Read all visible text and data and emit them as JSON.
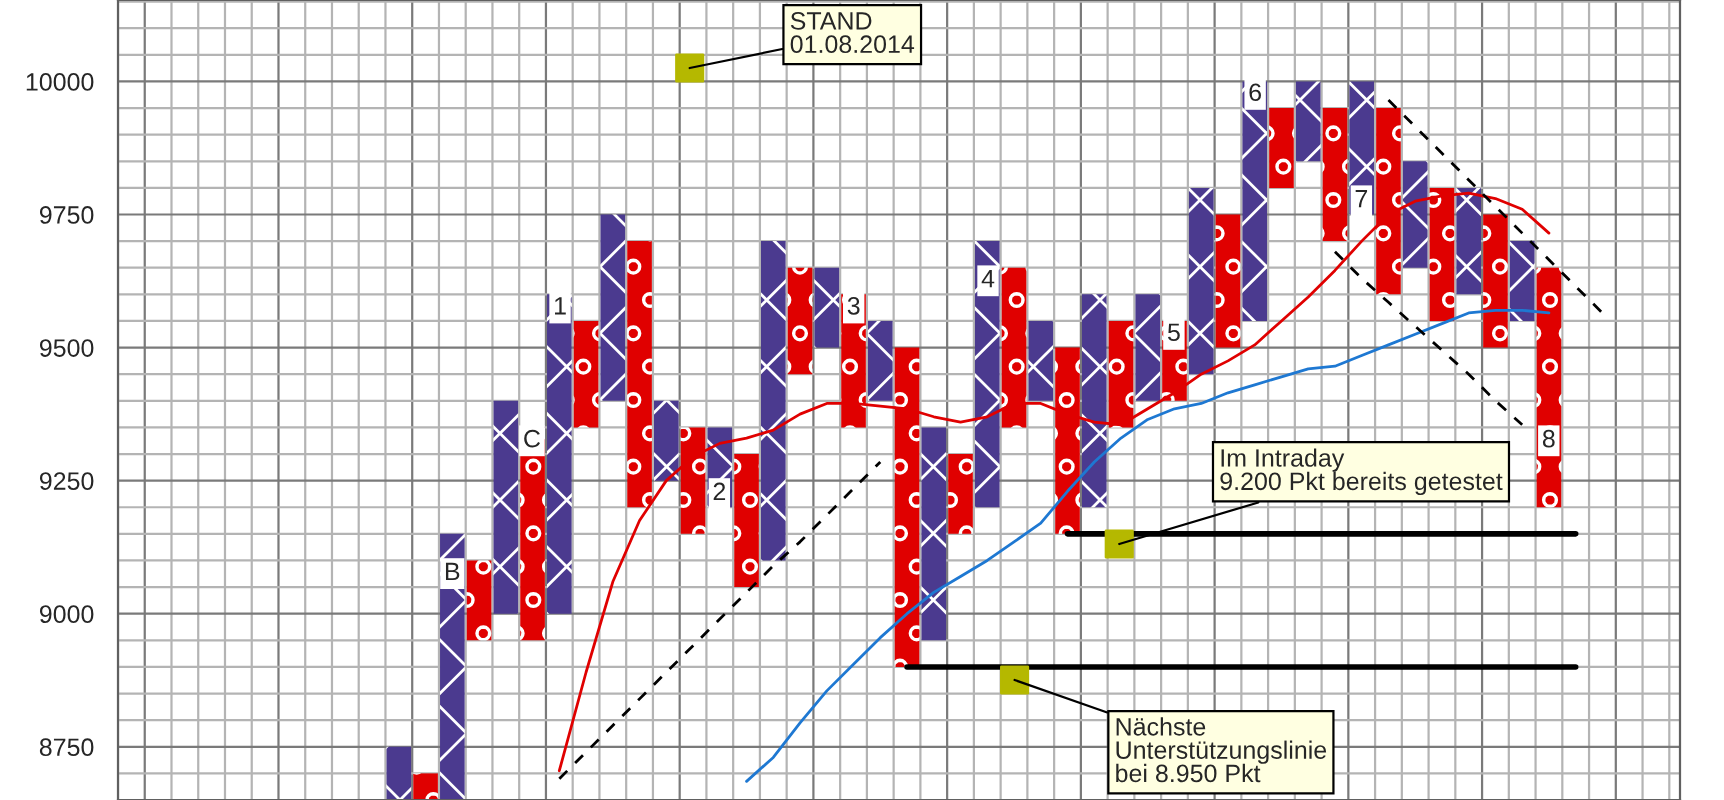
{
  "chart_data": {
    "type": "bar",
    "categories": [
      null,
      null,
      null,
      null,
      null,
      null,
      null,
      null,
      null,
      null,
      null,
      null,
      null,
      null,
      null,
      null,
      null,
      null,
      null,
      null,
      null,
      null,
      null,
      null,
      null,
      null,
      null,
      null,
      null,
      null,
      null,
      null,
      null,
      null,
      null,
      null,
      null,
      null,
      null,
      null,
      null,
      null,
      null,
      null,
      null,
      null,
      null,
      null,
      null,
      null,
      null,
      null,
      null,
      null,
      null,
      null,
      null,
      null
    ],
    "ylim": [
      8650,
      10153
    ],
    "yticks": [
      {
        "value": 8700,
        "label": null
      },
      8750,
      {
        "value": 8800,
        "label": null
      },
      {
        "value": 8850,
        "label": null
      },
      {
        "value": 8900,
        "label": null
      },
      {
        "value": 8950,
        "label": null
      },
      9000,
      {
        "value": 9050,
        "label": null
      },
      {
        "value": 9100,
        "label": null
      },
      {
        "value": 9150,
        "label": null
      },
      {
        "value": 9200,
        "label": null
      },
      9250,
      {
        "value": 9300,
        "label": null
      },
      {
        "value": 9350,
        "label": null
      },
      {
        "value": 9400,
        "label": null
      },
      {
        "value": 9450,
        "label": null
      },
      9500,
      {
        "value": 9550,
        "label": null
      },
      {
        "value": 9600,
        "label": null
      },
      {
        "value": 9650,
        "label": null
      },
      {
        "value": 9700,
        "label": null
      },
      9750,
      {
        "value": 9800,
        "label": null
      },
      {
        "value": 9850,
        "label": null
      },
      {
        "value": 9900,
        "label": null
      },
      {
        "value": 9950,
        "label": null
      },
      10000,
      {
        "value": 10050,
        "label": null
      },
      {
        "value": 10100,
        "label": null
      },
      {
        "value": 10150,
        "label": null
      }
    ],
    "tick_labels": "y",
    "grid": true,
    "series": [
      {
        "color": "#4b3a8f",
        "values": [
          null,
          null,
          null,
          null,
          null,
          null,
          null,
          null,
          null,
          null,
          100,
          null,
          500,
          null,
          400,
          null,
          600,
          null,
          350,
          null,
          150,
          null,
          150,
          null,
          600,
          null,
          150,
          null,
          150,
          null,
          400,
          null,
          500,
          null,
          150,
          null,
          400,
          null,
          200,
          null,
          350,
          null,
          450,
          null,
          150,
          null,
          250,
          null,
          200,
          null,
          200,
          null,
          150,
          null,
          null,
          null,
          null,
          null
        ],
        "base": [
          null,
          null,
          null,
          null,
          null,
          null,
          null,
          null,
          null,
          null,
          8650,
          null,
          8650,
          null,
          9000,
          null,
          9000,
          null,
          9400,
          null,
          9250,
          null,
          9200,
          null,
          9100,
          null,
          9500,
          null,
          9400,
          null,
          8950,
          null,
          9200,
          null,
          9400,
          null,
          9200,
          null,
          9400,
          null,
          9450,
          null,
          9550,
          null,
          9850,
          null,
          9750,
          null,
          9650,
          null,
          9600,
          null,
          9550,
          null,
          null,
          null,
          null,
          null
        ]
      },
      {
        "color": "#e00000",
        "values": [
          null,
          null,
          null,
          null,
          null,
          null,
          null,
          null,
          null,
          null,
          null,
          50,
          null,
          150,
          null,
          400,
          null,
          200,
          null,
          500,
          null,
          200,
          null,
          250,
          null,
          200,
          null,
          250,
          null,
          600,
          null,
          150,
          null,
          300,
          null,
          350,
          null,
          200,
          null,
          150,
          null,
          250,
          null,
          150,
          null,
          250,
          null,
          350,
          null,
          250,
          null,
          250,
          null,
          450,
          null,
          null,
          null,
          null
        ],
        "base": [
          null,
          null,
          null,
          null,
          null,
          null,
          null,
          null,
          null,
          null,
          null,
          8650,
          null,
          8950,
          null,
          8950,
          null,
          9350,
          null,
          9200,
          null,
          9150,
          null,
          9050,
          null,
          9450,
          null,
          9350,
          null,
          8900,
          null,
          9150,
          null,
          9350,
          null,
          9150,
          null,
          9350,
          null,
          9400,
          null,
          9500,
          null,
          9800,
          null,
          9700,
          null,
          9600,
          null,
          9550,
          null,
          9500,
          null,
          9200,
          null,
          null,
          null,
          null
        ]
      },
      {
        "type": "line",
        "line_style": "solid",
        "color": "#e00000",
        "values": [
          null,
          null,
          null,
          null,
          null,
          null,
          null,
          null,
          null,
          null,
          null,
          null,
          null,
          null,
          null,
          null,
          8705,
          8890,
          9060,
          9175,
          9250,
          9295,
          9320,
          9330,
          9345,
          9375,
          9395,
          9395,
          9390,
          9385,
          9370,
          9360,
          9370,
          9395,
          9395,
          9375,
          9360,
          9355,
          9385,
          9415,
          9450,
          9475,
          9505,
          9550,
          9595,
          9645,
          9700,
          9750,
          9775,
          9785,
          9790,
          9780,
          9760,
          9715,
          null,
          null,
          null,
          null
        ]
      },
      {
        "type": "line",
        "line_style": "solid",
        "color": "#1e78d2",
        "values": [
          null,
          null,
          null,
          null,
          null,
          null,
          null,
          null,
          null,
          null,
          null,
          null,
          null,
          null,
          null,
          null,
          null,
          null,
          null,
          null,
          null,
          null,
          null,
          8685,
          8730,
          8795,
          8855,
          8905,
          8955,
          9000,
          9040,
          9070,
          9100,
          9135,
          9170,
          9230,
          9285,
          9330,
          9365,
          9385,
          9395,
          9415,
          9430,
          9445,
          9460,
          9465,
          9485,
          9505,
          9525,
          9545,
          9565,
          9570,
          9570,
          9565,
          null,
          null,
          null,
          null
        ]
      },
      {
        "type": "line",
        "line_style": "dashed",
        "color": "#000000",
        "values": [
          null,
          null,
          null,
          null,
          null,
          null,
          null,
          null,
          null,
          null,
          null,
          null,
          null,
          null,
          null,
          null,
          8690,
          8740,
          8790,
          8840,
          8890,
          8940,
          8990,
          9040,
          9090,
          9135,
          9185,
          9235,
          9285,
          null,
          null,
          null,
          null,
          null,
          null,
          null,
          null,
          null,
          null,
          null,
          null,
          null,
          null,
          null,
          null,
          null,
          null,
          null,
          null,
          null,
          null,
          null,
          null,
          null,
          null,
          null,
          null,
          null
        ]
      },
      {
        "type": "line",
        "line_style": "dashed",
        "color": "#000000",
        "values": [
          null,
          null,
          null,
          null,
          null,
          null,
          null,
          null,
          null,
          null,
          null,
          null,
          null,
          null,
          null,
          null,
          null,
          null,
          null,
          null,
          null,
          null,
          null,
          null,
          null,
          null,
          null,
          null,
          null,
          null,
          null,
          null,
          null,
          null,
          null,
          null,
          null,
          null,
          null,
          null,
          null,
          null,
          null,
          null,
          null,
          null,
          null,
          9965,
          9915,
          9865,
          9815,
          9765,
          9715,
          9665,
          9615,
          9565,
          null,
          null
        ]
      },
      {
        "type": "line",
        "line_style": "dashed",
        "color": "#000000",
        "values": [
          null,
          null,
          null,
          null,
          null,
          null,
          null,
          null,
          null,
          null,
          null,
          null,
          null,
          null,
          null,
          null,
          null,
          null,
          null,
          null,
          null,
          null,
          null,
          null,
          null,
          null,
          null,
          null,
          null,
          null,
          null,
          null,
          null,
          null,
          null,
          null,
          null,
          null,
          null,
          null,
          null,
          null,
          null,
          null,
          null,
          9680,
          9630,
          9585,
          9540,
          9495,
          9450,
          9400,
          9355,
          null,
          null,
          null,
          null,
          null
        ]
      },
      {
        "type": "line",
        "line_style": "solid",
        "color": "#000000",
        "values": [
          null,
          null,
          null,
          null,
          null,
          null,
          null,
          null,
          null,
          null,
          null,
          null,
          null,
          null,
          null,
          null,
          null,
          null,
          null,
          null,
          null,
          null,
          null,
          null,
          null,
          null,
          null,
          null,
          null,
          null,
          null,
          null,
          null,
          null,
          null,
          9150,
          9150,
          9150,
          9150,
          9150,
          9150,
          9150,
          9150,
          9150,
          9150,
          9150,
          9150,
          9150,
          9150,
          9150,
          9150,
          9150,
          9150,
          9150,
          9150,
          null,
          null,
          null
        ]
      },
      {
        "type": "line",
        "line_style": "solid",
        "color": "#000000",
        "values": [
          null,
          null,
          null,
          null,
          null,
          null,
          null,
          null,
          null,
          null,
          null,
          null,
          null,
          null,
          null,
          null,
          null,
          null,
          null,
          null,
          null,
          null,
          null,
          null,
          null,
          null,
          null,
          null,
          null,
          8900,
          8900,
          8900,
          8900,
          8900,
          8900,
          8900,
          8900,
          8900,
          8900,
          8900,
          8900,
          8900,
          8900,
          8900,
          8900,
          8900,
          8900,
          8900,
          8900,
          8900,
          8900,
          8900,
          8900,
          8900,
          8900,
          null,
          null,
          null
        ]
      }
    ],
    "annotations": [
      "STAND\n01.08.2014",
      "Im Intraday\n9.200 Pkt bereits getestet",
      "Nächste\nUnterstützungslinie\nbei 8.950 Pkt",
      "B",
      "C",
      "1",
      "2",
      "3",
      "4",
      "5",
      "6",
      "7",
      "8"
    ]
  }
}
